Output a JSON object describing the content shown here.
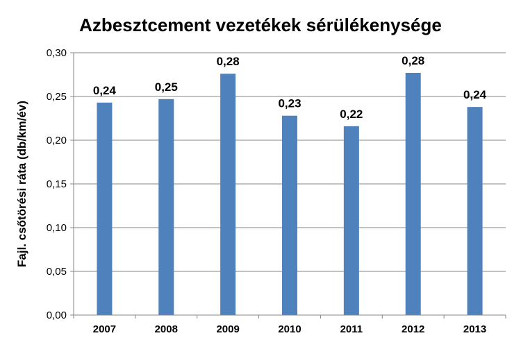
{
  "chart_data": {
    "type": "bar",
    "title": "Azbesztcement vezetékek sérülékenysége",
    "xlabel": "",
    "ylabel": "Fajl. csőtörési ráta (db/km/év)",
    "categories": [
      "2007",
      "2008",
      "2009",
      "2010",
      "2011",
      "2012",
      "2013"
    ],
    "values": [
      0.243,
      0.247,
      0.276,
      0.228,
      0.216,
      0.277,
      0.238
    ],
    "data_labels": [
      "0,24",
      "0,25",
      "0,28",
      "0,23",
      "0,22",
      "0,28",
      "0,24"
    ],
    "ylim": [
      0,
      0.3
    ],
    "yticks": [
      0,
      0.05,
      0.1,
      0.15,
      0.2,
      0.25,
      0.3
    ],
    "ytick_labels": [
      "0,00",
      "0,05",
      "0,10",
      "0,15",
      "0,20",
      "0,25",
      "0,30"
    ],
    "grid": true,
    "legend": "none",
    "bar_color": "#4F81BD",
    "grid_color": "#868686"
  }
}
